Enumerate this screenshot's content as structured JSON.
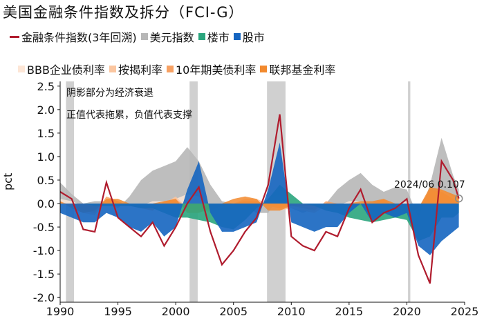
{
  "title": "美国金融条件指数及拆分（FCI-G）",
  "notes": [
    "阴影部分为经济衰退",
    "正值代表拖累，负值代表支撑"
  ],
  "annotation": "2024/06  0.107",
  "colors": {
    "fci": "#b01c2e",
    "usd": "#b7b7b7",
    "housing": "#2aa57d",
    "equity": "#1565c0",
    "bbb": "#fde6d6",
    "mortgage": "#fbc6a0",
    "t10y": "#f7a163",
    "fedfunds": "#f28a2e",
    "recession": "#d0d0d0"
  },
  "chart_data": {
    "type": "area",
    "title": "美国金融条件指数及拆分（FCI-G）",
    "ylabel": "pct",
    "xlabel": "",
    "xlim": [
      1990,
      2025
    ],
    "ylim": [
      -2.1,
      2.6
    ],
    "xticks": [
      "1990",
      "1995",
      "2000",
      "2005",
      "2010",
      "2015",
      "2020",
      "2025"
    ],
    "yticks": [
      "2.5",
      "2.0",
      "1.5",
      "1.0",
      "0.5",
      "0.0",
      "-0.5",
      "-1.0",
      "-1.5",
      "-2.0"
    ],
    "recessions": [
      [
        1990.5,
        1991.2
      ],
      [
        2001.2,
        2001.9
      ],
      [
        2007.9,
        2009.5
      ],
      [
        2020.1,
        2020.3
      ]
    ],
    "x": [
      1990,
      1991,
      1992,
      1993,
      1994,
      1995,
      1996,
      1997,
      1998,
      1999,
      2000,
      2001,
      2002,
      2003,
      2004,
      2005,
      2006,
      2007,
      2008,
      2009,
      2010,
      2011,
      2012,
      2013,
      2014,
      2015,
      2016,
      2017,
      2018,
      2019,
      2020,
      2021,
      2022,
      2023,
      2024,
      2024.5
    ],
    "series": [
      {
        "name": "金融条件指数(3年回溯)",
        "kind": "line",
        "values": [
          0.25,
          0.1,
          -0.55,
          -0.6,
          0.45,
          -0.3,
          -0.5,
          -0.7,
          -0.4,
          -0.9,
          -0.5,
          0.0,
          0.35,
          -0.6,
          -1.3,
          -1.0,
          -0.6,
          -0.3,
          0.4,
          1.9,
          -0.7,
          -0.9,
          -1.0,
          -0.6,
          -0.7,
          -0.1,
          0.3,
          -0.4,
          -0.2,
          -0.1,
          0.1,
          -1.1,
          -1.7,
          0.9,
          0.5,
          0.107
        ]
      },
      {
        "name": "美元指数",
        "kind": "area",
        "values": [
          0.45,
          0.2,
          0.0,
          0.05,
          0.05,
          -0.1,
          0.15,
          0.5,
          0.7,
          0.8,
          0.9,
          1.2,
          0.9,
          0.4,
          0.05,
          0.0,
          -0.05,
          -0.2,
          -0.2,
          0.2,
          -0.1,
          -0.2,
          -0.1,
          0.0,
          0.3,
          0.5,
          0.65,
          0.4,
          0.25,
          0.35,
          0.3,
          -0.3,
          0.4,
          1.4,
          0.6,
          0.3
        ]
      },
      {
        "name": "楼市",
        "kind": "area",
        "values": [
          0.0,
          0.0,
          0.0,
          -0.05,
          -0.05,
          -0.05,
          -0.05,
          -0.1,
          -0.1,
          -0.2,
          -0.3,
          -0.3,
          -0.35,
          -0.4,
          -0.5,
          -0.55,
          -0.35,
          -0.1,
          0.1,
          0.4,
          0.2,
          0.0,
          -0.05,
          -0.15,
          -0.2,
          -0.3,
          -0.35,
          -0.4,
          -0.35,
          -0.3,
          -0.35,
          -0.8,
          -0.7,
          -0.3,
          -0.3,
          -0.2
        ]
      },
      {
        "name": "股市",
        "kind": "area",
        "values": [
          -0.2,
          -0.3,
          -0.4,
          -0.4,
          -0.2,
          -0.3,
          -0.5,
          -0.6,
          -0.4,
          -0.7,
          -0.5,
          0.3,
          0.9,
          -0.2,
          -0.6,
          -0.6,
          -0.5,
          -0.4,
          0.3,
          1.3,
          -0.4,
          -0.5,
          -0.6,
          -0.5,
          -0.5,
          -0.2,
          0.0,
          -0.4,
          -0.2,
          -0.3,
          -0.2,
          -0.9,
          -1.1,
          -0.8,
          -0.6,
          -0.5
        ]
      },
      {
        "name": "BBB企业债利率",
        "kind": "area",
        "values": [
          0.1,
          0.05,
          -0.05,
          -0.1,
          0.05,
          0.05,
          -0.05,
          -0.05,
          0.05,
          0.05,
          0.1,
          0.2,
          0.15,
          -0.1,
          -0.15,
          -0.1,
          -0.05,
          0.0,
          0.1,
          0.2,
          0.0,
          -0.05,
          -0.1,
          -0.1,
          -0.05,
          0.05,
          0.05,
          -0.05,
          0.0,
          -0.05,
          0.05,
          -0.1,
          0.1,
          0.15,
          0.1,
          0.05
        ]
      },
      {
        "name": "按揭利率",
        "kind": "area",
        "values": [
          0.05,
          -0.05,
          -0.2,
          -0.25,
          0.1,
          0.05,
          -0.05,
          -0.1,
          -0.15,
          0.0,
          0.15,
          -0.1,
          -0.15,
          -0.2,
          -0.1,
          0.0,
          0.1,
          0.1,
          0.0,
          -0.15,
          -0.1,
          -0.15,
          -0.2,
          -0.05,
          0.0,
          -0.05,
          -0.05,
          0.0,
          0.1,
          -0.05,
          -0.15,
          -0.15,
          0.25,
          0.3,
          0.15,
          0.1
        ]
      },
      {
        "name": "10年期美债利率",
        "kind": "area",
        "values": [
          0.05,
          -0.05,
          -0.15,
          -0.2,
          0.15,
          0.05,
          -0.05,
          -0.1,
          -0.15,
          0.05,
          0.1,
          -0.1,
          -0.15,
          -0.15,
          -0.05,
          0.0,
          0.05,
          0.05,
          -0.05,
          -0.1,
          -0.05,
          -0.1,
          -0.15,
          0.05,
          0.0,
          -0.05,
          -0.05,
          0.0,
          0.1,
          -0.1,
          -0.2,
          -0.1,
          0.3,
          0.25,
          0.1,
          0.05
        ]
      },
      {
        "name": "联邦基金利率",
        "kind": "area",
        "values": [
          0.05,
          -0.1,
          -0.2,
          -0.15,
          0.1,
          0.1,
          0.0,
          0.0,
          0.0,
          0.05,
          0.1,
          -0.2,
          -0.2,
          -0.1,
          0.0,
          0.1,
          0.15,
          0.1,
          -0.15,
          -0.15,
          -0.05,
          -0.05,
          -0.05,
          -0.05,
          -0.05,
          0.0,
          0.05,
          0.05,
          0.1,
          0.0,
          -0.2,
          -0.1,
          0.35,
          0.3,
          0.2,
          0.15
        ]
      }
    ]
  }
}
